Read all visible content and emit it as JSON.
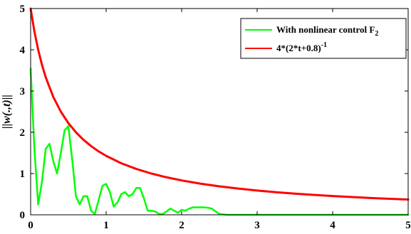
{
  "chart_data": {
    "type": "line",
    "title": "",
    "xlabel": "",
    "ylabel": "||w(.,t)||",
    "xlim": [
      0,
      5
    ],
    "ylim": [
      0,
      5
    ],
    "xticks": [
      "0",
      "1",
      "2",
      "3",
      "4",
      "5"
    ],
    "yticks": [
      "0",
      "1",
      "2",
      "3",
      "4",
      "5"
    ],
    "grid": false,
    "legend_position": "top-right",
    "series": [
      {
        "name": "With nonlinear control F2",
        "color": "#00ff00",
        "x": [
          0,
          0.05,
          0.1,
          0.15,
          0.2,
          0.25,
          0.3,
          0.35,
          0.4,
          0.45,
          0.5,
          0.55,
          0.6,
          0.65,
          0.7,
          0.75,
          0.8,
          0.85,
          0.9,
          0.95,
          1.0,
          1.05,
          1.1,
          1.15,
          1.2,
          1.25,
          1.3,
          1.35,
          1.4,
          1.45,
          1.5,
          1.55,
          1.6,
          1.65,
          1.7,
          1.75,
          1.8,
          1.85,
          1.9,
          1.95,
          2.0,
          2.05,
          2.1,
          2.15,
          2.2,
          2.25,
          2.3,
          2.35,
          2.4,
          2.45,
          2.5,
          2.6,
          2.8,
          3.0,
          3.5,
          4.0,
          4.5,
          5.0
        ],
        "y": [
          3.55,
          1.6,
          0.25,
          0.8,
          1.6,
          1.72,
          1.3,
          1.0,
          1.5,
          2.05,
          2.15,
          1.35,
          0.45,
          0.25,
          0.45,
          0.45,
          0.1,
          0.02,
          0.35,
          0.7,
          0.75,
          0.55,
          0.2,
          0.3,
          0.5,
          0.55,
          0.45,
          0.5,
          0.65,
          0.65,
          0.4,
          0.1,
          0.1,
          0.08,
          0.02,
          0.02,
          0.08,
          0.15,
          0.1,
          0.05,
          0.12,
          0.1,
          0.15,
          0.18,
          0.18,
          0.18,
          0.18,
          0.17,
          0.15,
          0.08,
          0.02,
          0.0,
          0.0,
          0.0,
          0.0,
          0.0,
          0.0,
          0.0
        ]
      },
      {
        "name": "4*(2*t+0.8)-1",
        "color": "#ff0000",
        "x": [
          0,
          0.05,
          0.1,
          0.15,
          0.2,
          0.3,
          0.4,
          0.5,
          0.6,
          0.7,
          0.8,
          0.9,
          1.0,
          1.2,
          1.4,
          1.6,
          1.8,
          2.0,
          2.25,
          2.5,
          2.75,
          3.0,
          3.25,
          3.5,
          3.75,
          4.0,
          4.25,
          4.5,
          4.75,
          5.0
        ],
        "y": [
          5.0,
          4.444,
          4.0,
          3.636,
          3.333,
          2.857,
          2.5,
          2.222,
          2.0,
          1.818,
          1.667,
          1.538,
          1.429,
          1.25,
          1.111,
          1.0,
          0.909,
          0.833,
          0.755,
          0.69,
          0.635,
          0.588,
          0.548,
          0.513,
          0.482,
          0.455,
          0.43,
          0.408,
          0.388,
          0.37
        ]
      }
    ],
    "legend": [
      {
        "base": "With nonlinear control F",
        "sub": "2",
        "sup": ""
      },
      {
        "base": "4*(2*t+0.8)",
        "sub": "",
        "sup": "-1"
      }
    ]
  }
}
